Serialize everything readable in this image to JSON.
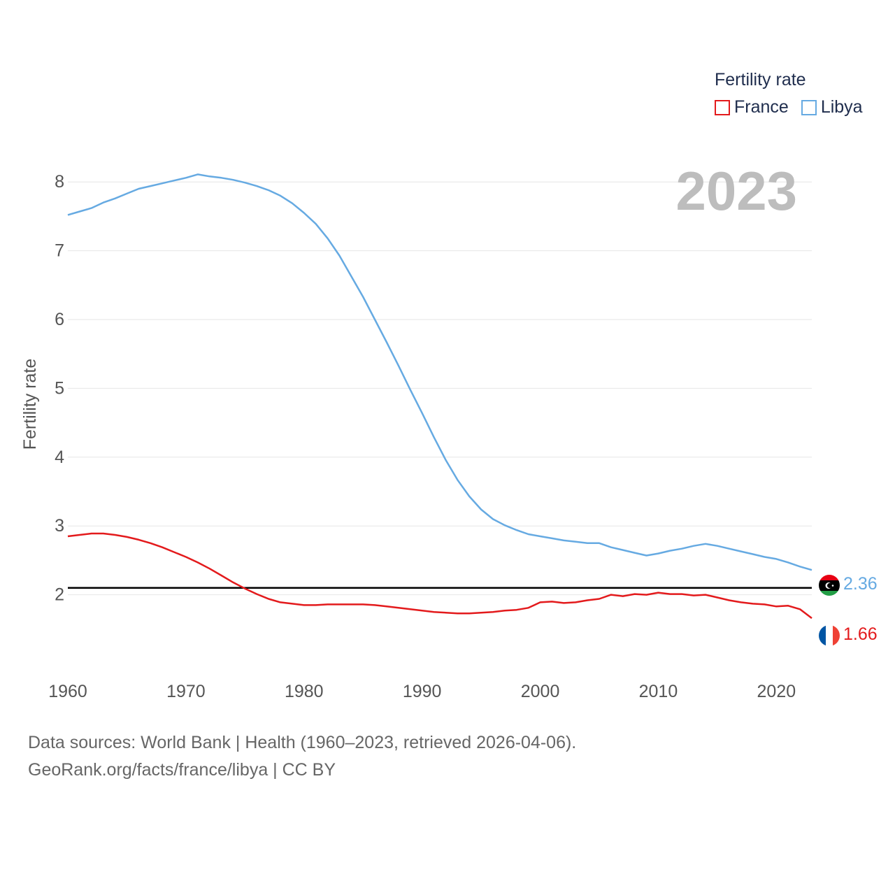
{
  "legend": {
    "title": "Fertility rate",
    "items": [
      {
        "label": "France",
        "color": "#e31a1c"
      },
      {
        "label": "Libya",
        "color": "#66aae2"
      }
    ]
  },
  "sources": {
    "line1": "Data sources: World Bank | Health (1960–2023, retrieved 2026-04-06).",
    "line2": "GeoRank.org/facts/france/libya | CC BY"
  },
  "chart_data": {
    "type": "line",
    "title": "Fertility rate",
    "year_label": "2023",
    "xlabel": "",
    "ylabel": "Fertility rate",
    "xlim": [
      1960,
      2023
    ],
    "ylim": [
      1.0,
      8.5
    ],
    "x_ticks": [
      1960,
      1970,
      1980,
      1990,
      2000,
      2010,
      2020
    ],
    "y_ticks": [
      2,
      3,
      4,
      5,
      6,
      7,
      8
    ],
    "reference_line": 2.1,
    "x": [
      1960,
      1961,
      1962,
      1963,
      1964,
      1965,
      1966,
      1967,
      1968,
      1969,
      1970,
      1971,
      1972,
      1973,
      1974,
      1975,
      1976,
      1977,
      1978,
      1979,
      1980,
      1981,
      1982,
      1983,
      1984,
      1985,
      1986,
      1987,
      1988,
      1989,
      1990,
      1991,
      1992,
      1993,
      1994,
      1995,
      1996,
      1997,
      1998,
      1999,
      2000,
      2001,
      2002,
      2003,
      2004,
      2005,
      2006,
      2007,
      2008,
      2009,
      2010,
      2011,
      2012,
      2013,
      2014,
      2015,
      2016,
      2017,
      2018,
      2019,
      2020,
      2021,
      2022,
      2023
    ],
    "series": [
      {
        "name": "France",
        "color": "#e31a1c",
        "end_label": "1.66",
        "values": [
          2.85,
          2.87,
          2.89,
          2.89,
          2.87,
          2.84,
          2.8,
          2.75,
          2.69,
          2.62,
          2.55,
          2.47,
          2.38,
          2.28,
          2.18,
          2.09,
          2.01,
          1.94,
          1.89,
          1.87,
          1.85,
          1.85,
          1.86,
          1.86,
          1.86,
          1.86,
          1.85,
          1.83,
          1.81,
          1.79,
          1.77,
          1.75,
          1.74,
          1.73,
          1.73,
          1.74,
          1.75,
          1.77,
          1.78,
          1.81,
          1.89,
          1.9,
          1.88,
          1.89,
          1.92,
          1.94,
          2.0,
          1.98,
          2.01,
          2.0,
          2.03,
          2.01,
          2.01,
          1.99,
          2.0,
          1.96,
          1.92,
          1.89,
          1.87,
          1.86,
          1.83,
          1.84,
          1.79,
          1.66
        ]
      },
      {
        "name": "Libya",
        "color": "#66aae2",
        "end_label": "2.36",
        "values": [
          7.52,
          7.57,
          7.62,
          7.7,
          7.76,
          7.83,
          7.9,
          7.94,
          7.98,
          8.02,
          8.06,
          8.11,
          8.08,
          8.06,
          8.03,
          7.99,
          7.94,
          7.88,
          7.8,
          7.69,
          7.55,
          7.39,
          7.18,
          6.93,
          6.63,
          6.33,
          6.0,
          5.67,
          5.33,
          4.98,
          4.64,
          4.29,
          3.96,
          3.67,
          3.43,
          3.24,
          3.1,
          3.01,
          2.94,
          2.88,
          2.85,
          2.82,
          2.79,
          2.77,
          2.75,
          2.75,
          2.69,
          2.65,
          2.61,
          2.57,
          2.6,
          2.64,
          2.67,
          2.71,
          2.74,
          2.71,
          2.67,
          2.63,
          2.59,
          2.55,
          2.52,
          2.47,
          2.41,
          2.36
        ]
      }
    ]
  }
}
